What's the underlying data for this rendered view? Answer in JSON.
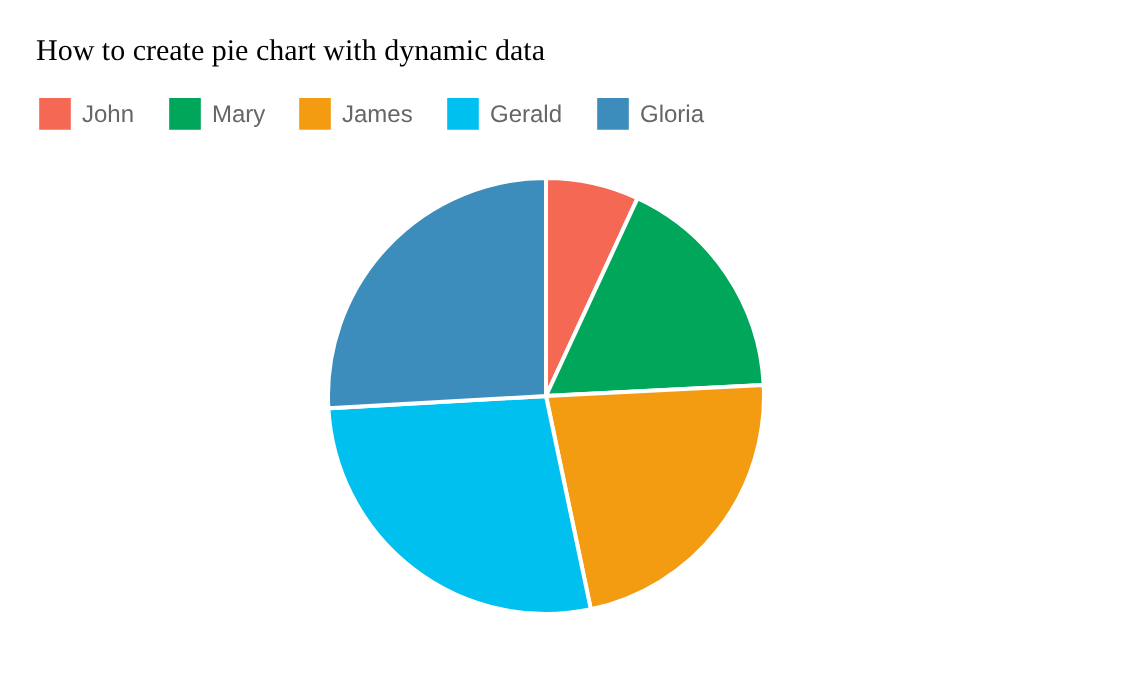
{
  "chart_data": {
    "type": "pie",
    "title": "How to create pie chart with dynamic data",
    "categories": [
      "John",
      "Mary",
      "James",
      "Gerald",
      "Gloria"
    ],
    "values": [
      6.9,
      17.3,
      22.5,
      27.4,
      25.9
    ],
    "colors": [
      "#f56954",
      "#00a65a",
      "#f39c12",
      "#00c0ef",
      "#3c8dbc"
    ],
    "legend": "top"
  }
}
